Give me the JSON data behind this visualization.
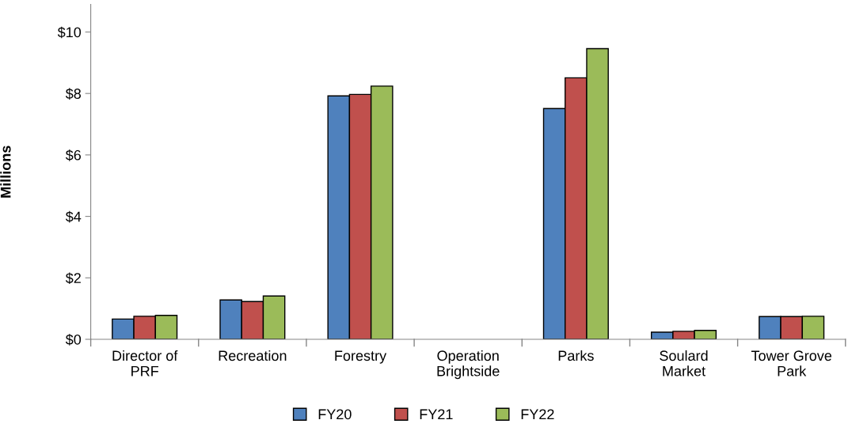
{
  "chart_data": {
    "type": "bar",
    "ylabel": "Millions",
    "categories": [
      "Director of\nPRF",
      "Recreation",
      "Forestry",
      "Operation\nBrightside",
      "Parks",
      "Soulard\nMarket",
      "Tower Grove\nPark"
    ],
    "series": [
      {
        "name": "FY20",
        "color": "#4f81bd",
        "values": [
          0.66,
          1.28,
          7.92,
          null,
          7.51,
          0.23,
          0.74
        ]
      },
      {
        "name": "FY21",
        "color": "#c0504d",
        "values": [
          0.75,
          1.23,
          7.97,
          null,
          8.51,
          0.26,
          0.74
        ]
      },
      {
        "name": "FY22",
        "color": "#9bbb59",
        "values": [
          0.78,
          1.41,
          8.24,
          null,
          9.46,
          0.29,
          0.75
        ]
      }
    ],
    "ylim": [
      0,
      10.9
    ],
    "yticks": [
      {
        "value": 0,
        "label": "$0"
      },
      {
        "value": 2,
        "label": "$2"
      },
      {
        "value": 4,
        "label": "$4"
      },
      {
        "value": 6,
        "label": "$6"
      },
      {
        "value": 8,
        "label": "$8"
      },
      {
        "value": 10,
        "label": "$10"
      }
    ],
    "legend": "bottom",
    "grid": false
  }
}
